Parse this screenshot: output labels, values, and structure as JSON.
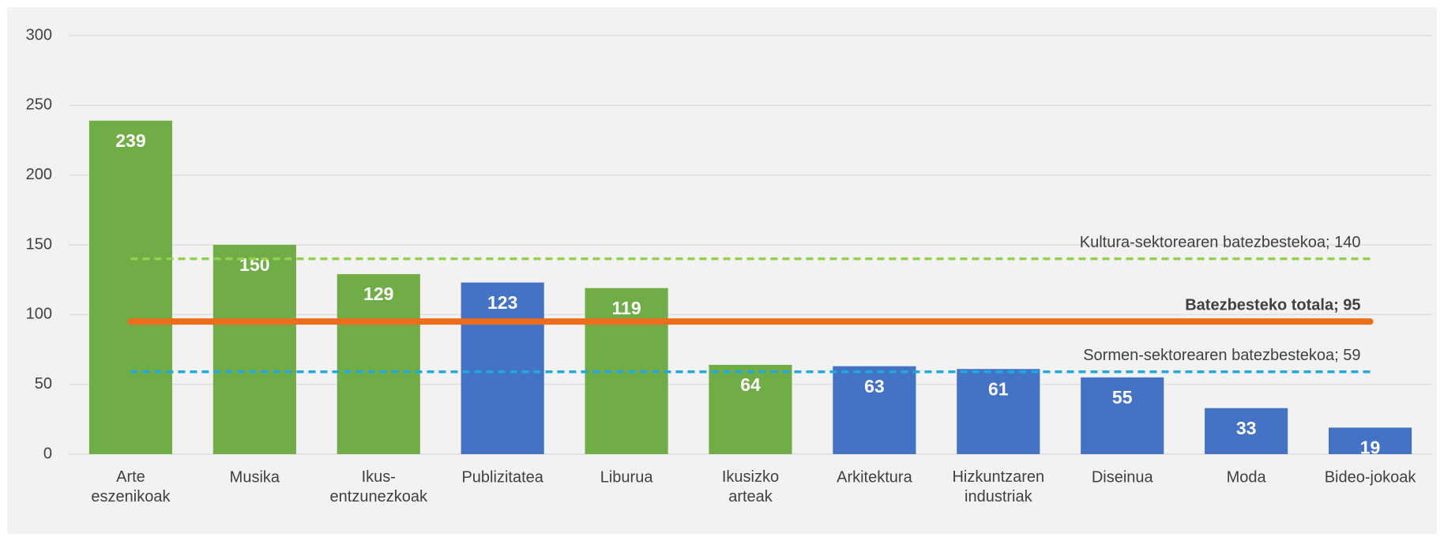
{
  "chart_data": {
    "type": "bar",
    "categories": [
      "Arte\neszenikoak",
      "Musika",
      "Ikus-\nentzunezkoak",
      "Publizitatea",
      "Liburua",
      "Ikusizko\narteak",
      "Arkitektura",
      "Hizkuntzaren\nindustriak",
      "Diseinua",
      "Moda",
      "Bideo-jokoak"
    ],
    "values": [
      239,
      150,
      129,
      123,
      119,
      64,
      63,
      61,
      55,
      33,
      19
    ],
    "colors": [
      "#70ad47",
      "#70ad47",
      "#70ad47",
      "#4472c4",
      "#70ad47",
      "#70ad47",
      "#4472c4",
      "#4472c4",
      "#4472c4",
      "#4472c4",
      "#4472c4"
    ],
    "ylim": [
      0,
      300
    ],
    "yticks": [
      0,
      50,
      100,
      150,
      200,
      250,
      300
    ],
    "grid": true,
    "reference_lines": [
      {
        "label": "Kultura-sektorearen batezbestekoa; 140",
        "value": 140,
        "color": "#92d050",
        "style": "dashed"
      },
      {
        "label": "Batezbesteko totala; 95",
        "value": 95,
        "color": "#ed6d1c",
        "style": "solid"
      },
      {
        "label": "Sormen-sektorearen batezbestekoa; 59",
        "value": 59,
        "color": "#1eaadf",
        "style": "dashed"
      }
    ]
  }
}
